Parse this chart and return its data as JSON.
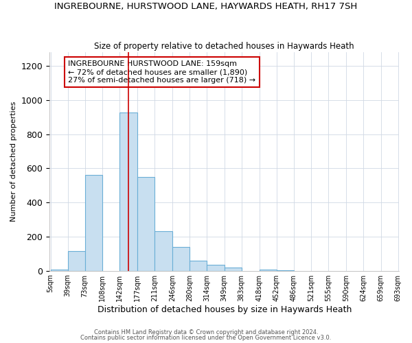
{
  "title": "INGREBOURNE, HURSTWOOD LANE, HAYWARDS HEATH, RH17 7SH",
  "subtitle": "Size of property relative to detached houses in Haywards Heath",
  "xlabel": "Distribution of detached houses by size in Haywards Heath",
  "ylabel": "Number of detached properties",
  "bin_edges": [
    5,
    39,
    73,
    108,
    142,
    177,
    211,
    246,
    280,
    314,
    349,
    383,
    418,
    452,
    486,
    521,
    555,
    590,
    624,
    659,
    693
  ],
  "bar_heights": [
    7,
    115,
    560,
    0,
    925,
    550,
    230,
    140,
    57,
    35,
    20,
    0,
    7,
    2,
    0,
    0,
    0,
    0,
    0,
    0
  ],
  "bar_fill_color": "#c8dff0",
  "bar_edge_color": "#6aaed6",
  "property_size": 159,
  "property_line_color": "#cc0000",
  "annotation_text": "INGREBOURNE HURSTWOOD LANE: 159sqm\n← 72% of detached houses are smaller (1,890)\n27% of semi-detached houses are larger (718) →",
  "annotation_box_color": "#cc0000",
  "annotation_fill_color": "#ffffff",
  "bg_color": "#ffffff",
  "grid_color": "#d0d8e4",
  "ylim": [
    0,
    1280
  ],
  "yticks": [
    0,
    200,
    400,
    600,
    800,
    1000,
    1200
  ],
  "footer1": "Contains HM Land Registry data © Crown copyright and database right 2024.",
  "footer2": "Contains public sector information licensed under the Open Government Licence v3.0."
}
